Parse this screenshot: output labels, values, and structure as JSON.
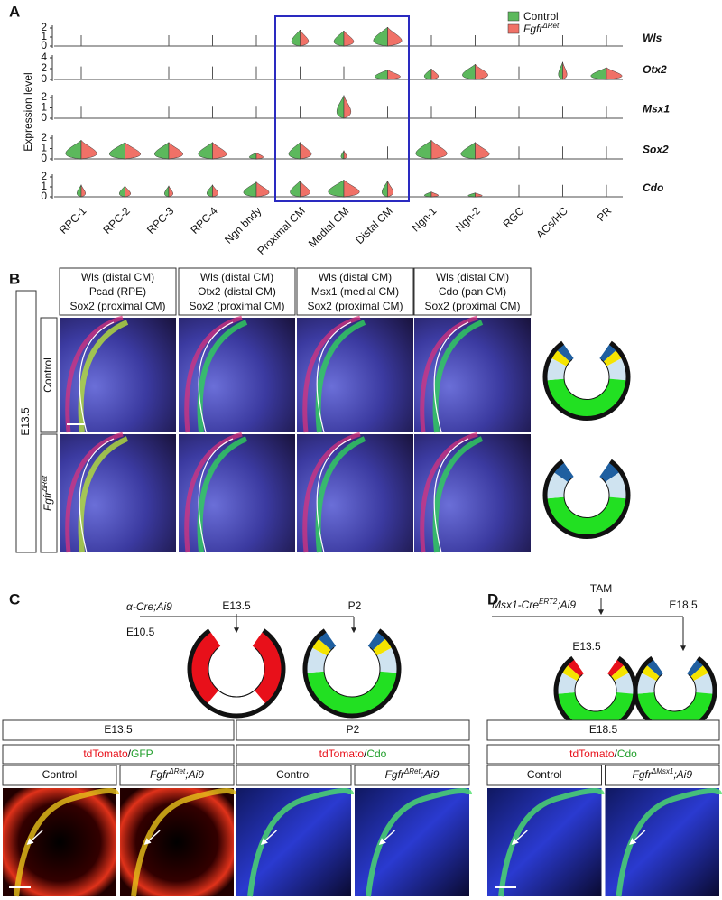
{
  "panel_a": {
    "label": "A",
    "y_axis_label": "Expression level",
    "legend": [
      {
        "name": "Control",
        "color": "#5cb85c"
      },
      {
        "name": "Fgfr",
        "superscript": "ΔRet",
        "color": "#f07167"
      }
    ],
    "genes": [
      {
        "name": "Wls",
        "ticks": [
          0,
          1,
          2
        ]
      },
      {
        "name": "Otx2",
        "ticks": [
          0,
          2,
          4
        ]
      },
      {
        "name": "Msx1",
        "ticks": [
          0,
          1,
          2
        ]
      },
      {
        "name": "Sox2",
        "ticks": [
          0,
          1,
          2
        ]
      },
      {
        "name": "Cdo",
        "ticks": [
          0,
          1,
          2
        ]
      }
    ],
    "cell_types": [
      "RPC-1",
      "RPC-2",
      "RPC-3",
      "RPC-4",
      "Ngn bndy",
      "Proximal CM",
      "Medial CM",
      "Distal CM",
      "Ngn-1",
      "Ngn-2",
      "RGC",
      "ACs/HC",
      "PR"
    ]
  },
  "panel_b": {
    "label": "B",
    "stage": "E13.5",
    "rows": [
      {
        "text": "Control"
      },
      {
        "text": "Fgfr",
        "superscript": "ΔRet"
      }
    ],
    "columns": [
      {
        "lines": [
          {
            "text": "Wls (distal CM)",
            "color": "#e8101a"
          },
          {
            "text": "Pcad (RPE)",
            "color": "#1f9e2a"
          },
          {
            "text": "Sox2 (proximal CM)",
            "color": "#a0a0a0"
          }
        ]
      },
      {
        "lines": [
          {
            "text": "Wls (distal CM)",
            "color": "#e8101a"
          },
          {
            "text": "Otx2 (distal CM)",
            "color": "#1f9e2a"
          },
          {
            "text": "Sox2 (proximal CM)",
            "color": "#a0a0a0"
          }
        ]
      },
      {
        "lines": [
          {
            "text": "Wls (distal CM)",
            "color": "#e8101a"
          },
          {
            "text": "Msx1 (medial CM)",
            "color": "#1f9e2a"
          },
          {
            "text": "Sox2 (proximal CM)",
            "color": "#a0a0a0"
          }
        ]
      },
      {
        "lines": [
          {
            "text": "Wls (distal CM)",
            "color": "#e8101a"
          },
          {
            "text": "Cdo (pan CM)",
            "color": "#1f9e2a"
          },
          {
            "text": "Sox2 (proximal CM)",
            "color": "#a0a0a0"
          }
        ]
      }
    ]
  },
  "panel_c": {
    "label": "C",
    "genotype": "α-Cre;Ai9",
    "timepoints": [
      "E10.5",
      "E13.5",
      "P2"
    ],
    "groups": [
      {
        "stage": "E13.5",
        "stain": [
          {
            "text": "tdTomato",
            "color": "#e8101a"
          },
          {
            "text": "/",
            "color": "#000000"
          },
          {
            "text": "GFP",
            "color": "#1f9e2a"
          }
        ],
        "conditions": [
          {
            "text": "Control"
          },
          {
            "text": "Fgfr",
            "superscript": "ΔRet",
            "suffix": ";Ai9"
          }
        ]
      },
      {
        "stage": "P2",
        "stain": [
          {
            "text": "tdTomato",
            "color": "#e8101a"
          },
          {
            "text": "/",
            "color": "#000000"
          },
          {
            "text": "Cdo",
            "color": "#1f9e2a"
          }
        ],
        "conditions": [
          {
            "text": "Control"
          },
          {
            "text": "Fgfr",
            "superscript": "ΔRet",
            "suffix": ";Ai9"
          }
        ]
      }
    ]
  },
  "panel_d": {
    "label": "D",
    "treatment": "TAM",
    "genotype": {
      "text": "Msx1-Cre",
      "superscript": "ERT2",
      "suffix": ";Ai9"
    },
    "timepoints": [
      "E13.5",
      "E18.5"
    ],
    "groups": [
      {
        "stage": "E18.5",
        "stain": [
          {
            "text": "tdTomato",
            "color": "#e8101a"
          },
          {
            "text": "/",
            "color": "#000000"
          },
          {
            "text": "Cdo",
            "color": "#1f9e2a"
          }
        ],
        "conditions": [
          {
            "text": "Control"
          },
          {
            "text": "Fgfr",
            "superscript": "ΔMsx1",
            "suffix": ";Ai9"
          }
        ]
      }
    ]
  }
}
